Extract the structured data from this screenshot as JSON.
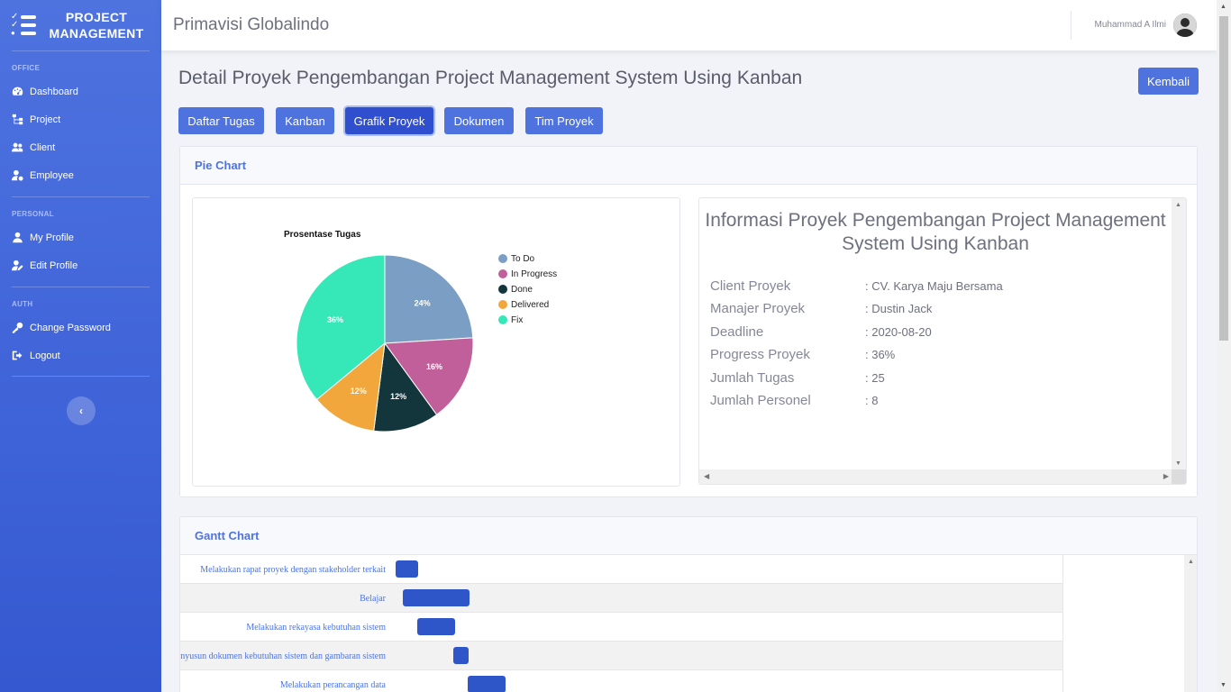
{
  "sidebar": {
    "brand": "PROJECT MANAGEMENT",
    "sections": [
      {
        "title": "OFFICE",
        "items": [
          {
            "label": "Dashboard",
            "icon": "tachometer-icon"
          },
          {
            "label": "Project",
            "icon": "sitemap-icon"
          },
          {
            "label": "Client",
            "icon": "users-icon"
          },
          {
            "label": "Employee",
            "icon": "user-cog-icon"
          }
        ]
      },
      {
        "title": "PERSONAL",
        "items": [
          {
            "label": "My Profile",
            "icon": "user-icon"
          },
          {
            "label": "Edit Profile",
            "icon": "user-edit-icon"
          }
        ]
      },
      {
        "title": "AUTH",
        "items": [
          {
            "label": "Change Password",
            "icon": "key-icon"
          },
          {
            "label": "Logout",
            "icon": "sign-out-icon"
          }
        ]
      }
    ]
  },
  "topbar": {
    "company": "Primavisi Globalindo",
    "user": "Muhammad A Ilmi"
  },
  "page": {
    "title": "Detail Proyek Pengembangan Project Management System Using Kanban",
    "back_label": "Kembali",
    "tabs": [
      "Daftar Tugas",
      "Kanban",
      "Grafik Proyek",
      "Dokumen",
      "Tim Proyek"
    ],
    "active_tab": "Grafik Proyek"
  },
  "pie_card": {
    "header": "Pie Chart",
    "chart_data": {
      "type": "pie",
      "title": "Prosentase Tugas",
      "categories": [
        "To Do",
        "In Progress",
        "Done",
        "Delivered",
        "Fix"
      ],
      "values": [
        24,
        16,
        12,
        12,
        36
      ],
      "labels": [
        "24%",
        "16%",
        "12%",
        "12%",
        "36%"
      ],
      "colors": [
        "#7b9fc4",
        "#c05f9a",
        "#12363b",
        "#f2a73c",
        "#36e8b8"
      ],
      "legend": "right"
    }
  },
  "info": {
    "title": "Informasi Proyek Pengembangan Project Management System Using Kanban",
    "rows": [
      {
        "label": "Client Proyek",
        "value": ": CV. Karya Maju Bersama"
      },
      {
        "label": "Manajer Proyek",
        "value": ": Dustin Jack"
      },
      {
        "label": "Deadline",
        "value": ": 2020-08-20"
      },
      {
        "label": "Progress Proyek",
        "value": ": 36%"
      },
      {
        "label": "Jumlah Tugas",
        "value": ": 25"
      },
      {
        "label": "Jumlah Personel",
        "value": ": 8"
      }
    ]
  },
  "gantt_card": {
    "header": "Gantt Chart",
    "tasks": [
      "Melakukan rapat proyek dengan stakeholder terkait",
      "Belajar",
      "Melakukan rekayasa kebutuhan sistem",
      "Menyusun dokumen kebutuhan sistem dan gambaran sistem",
      "Melakukan perancangan data"
    ]
  },
  "colors": {
    "primary": "#4e73df",
    "sidebar": "#4e73df",
    "bar": "#2f56c8"
  }
}
